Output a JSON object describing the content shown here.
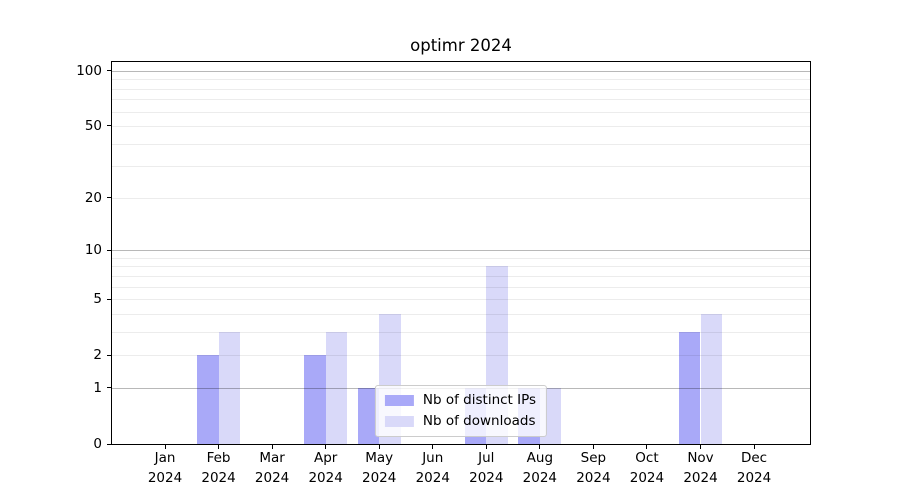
{
  "chart_data": {
    "type": "bar",
    "title": "optimr 2024",
    "year": "2024",
    "categories": [
      "Jan",
      "Feb",
      "Mar",
      "Apr",
      "May",
      "Jun",
      "Jul",
      "Aug",
      "Sep",
      "Oct",
      "Nov",
      "Dec"
    ],
    "series": [
      {
        "name": "Nb of distinct IPs",
        "color": "#a9a9f8",
        "values": [
          0,
          2,
          0,
          2,
          1,
          0,
          1,
          1,
          0,
          0,
          3,
          0
        ]
      },
      {
        "name": "Nb of downloads",
        "color": "#d9d9f9",
        "values": [
          0,
          3,
          0,
          3,
          4,
          0,
          8,
          1,
          0,
          0,
          4,
          0
        ]
      }
    ],
    "y_scale": "log1p",
    "ylim": [
      0,
      111.5
    ],
    "y_tick_values": [
      0,
      1,
      2,
      5,
      10,
      20,
      50,
      100
    ],
    "y_major_gridlines": [
      1,
      10,
      100
    ],
    "y_minor_gridlines": [
      2,
      3,
      4,
      5,
      6,
      7,
      8,
      9,
      20,
      30,
      40,
      50,
      60,
      70,
      80,
      90
    ],
    "grid": true,
    "legend_position": "lower center",
    "colors": {
      "grid_major": "rgba(0,0,0,0.28)",
      "grid_minor": "rgba(0,0,0,0.075)",
      "axis": "#000000",
      "background": "#ffffff"
    }
  }
}
